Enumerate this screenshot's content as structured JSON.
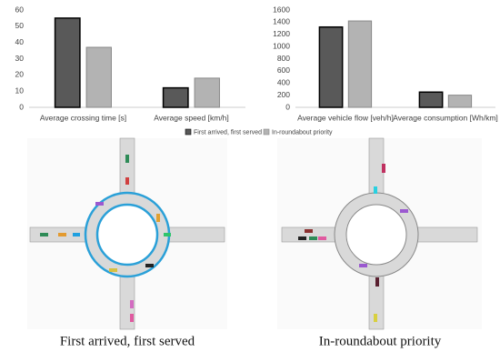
{
  "chart_data": [
    {
      "type": "bar",
      "categories": [
        "Average crossing time [s]",
        "Average speed [km/h]"
      ],
      "series": [
        {
          "name": "First arrived, first served",
          "color": "#595959",
          "values": [
            55,
            12
          ]
        },
        {
          "name": "In-roundabout priority",
          "color": "#b3b3b3",
          "values": [
            37,
            18
          ]
        }
      ],
      "ylim": [
        0,
        60
      ],
      "yticks": [
        0,
        10,
        20,
        30,
        40,
        50,
        60
      ],
      "grid": false
    },
    {
      "type": "bar",
      "categories": [
        "Average vehicle flow [veh/h]",
        "Average consumption [Wh/km]"
      ],
      "series": [
        {
          "color": "#595959",
          "values": [
            1320,
            250
          ]
        },
        {
          "color": "#b3b3b3",
          "values": [
            1420,
            200
          ]
        }
      ],
      "ylim": [
        0,
        1600
      ],
      "yticks": [
        0,
        200,
        400,
        600,
        800,
        1000,
        1200,
        1400,
        1600
      ],
      "grid": false
    }
  ],
  "images": [
    {
      "caption": "First arrived, first served"
    },
    {
      "caption": "In-roundabout priority"
    }
  ]
}
